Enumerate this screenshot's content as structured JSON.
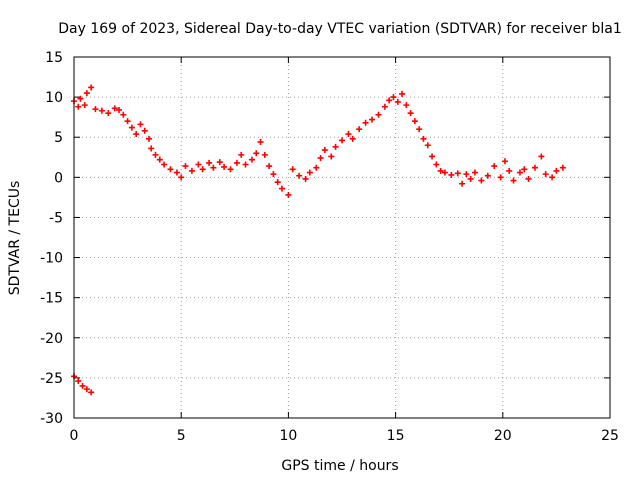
{
  "chart_data": {
    "type": "scatter",
    "title": "Day 169 of 2023, Sidereal Day-to-day VTEC variation (SDTVAR) for receiver bla1",
    "xlabel": "GPS time / hours",
    "ylabel": "SDTVAR / TECUs",
    "xlim": [
      0,
      25
    ],
    "ylim": [
      -30,
      15
    ],
    "grid": true,
    "x_ticks": [
      0,
      5,
      10,
      15,
      20,
      25
    ],
    "y_ticks": [
      15,
      10,
      5,
      0,
      -5,
      -10,
      -15,
      -20,
      -25,
      -30
    ],
    "marker_color": "#ff0000",
    "marker": "plus",
    "series": [
      {
        "name": "main-track",
        "points": [
          [
            0.0,
            9.5
          ],
          [
            0.3,
            9.8
          ],
          [
            0.6,
            10.5
          ],
          [
            0.8,
            11.2
          ],
          [
            0.2,
            8.8
          ],
          [
            0.5,
            9.0
          ],
          [
            1.0,
            8.5
          ],
          [
            1.3,
            8.3
          ],
          [
            1.6,
            8.0
          ],
          [
            1.9,
            8.6
          ],
          [
            2.1,
            8.4
          ],
          [
            2.3,
            7.8
          ],
          [
            2.5,
            7.0
          ],
          [
            2.7,
            6.2
          ],
          [
            2.9,
            5.4
          ],
          [
            3.1,
            6.6
          ],
          [
            3.3,
            5.8
          ],
          [
            3.5,
            4.8
          ],
          [
            3.6,
            3.6
          ],
          [
            3.8,
            2.8
          ],
          [
            4.0,
            2.2
          ],
          [
            4.2,
            1.6
          ],
          [
            4.5,
            1.0
          ],
          [
            4.8,
            0.6
          ],
          [
            5.0,
            0.0
          ],
          [
            5.2,
            1.4
          ],
          [
            5.5,
            0.8
          ],
          [
            5.8,
            1.6
          ],
          [
            6.0,
            1.0
          ],
          [
            6.3,
            1.8
          ],
          [
            6.5,
            1.2
          ],
          [
            6.8,
            1.9
          ],
          [
            7.0,
            1.3
          ],
          [
            7.3,
            1.0
          ],
          [
            7.6,
            1.8
          ],
          [
            7.8,
            2.8
          ],
          [
            8.0,
            1.6
          ],
          [
            8.3,
            2.2
          ],
          [
            8.5,
            3.0
          ],
          [
            8.7,
            4.4
          ],
          [
            8.9,
            2.8
          ],
          [
            9.1,
            1.4
          ],
          [
            9.3,
            0.4
          ],
          [
            9.5,
            -0.6
          ],
          [
            9.7,
            -1.4
          ],
          [
            10.0,
            -2.2
          ],
          [
            10.2,
            1.0
          ],
          [
            10.5,
            0.2
          ],
          [
            10.8,
            -0.2
          ],
          [
            11.0,
            0.6
          ],
          [
            11.3,
            1.2
          ],
          [
            11.5,
            2.4
          ],
          [
            11.7,
            3.4
          ],
          [
            12.0,
            2.6
          ],
          [
            12.2,
            3.8
          ],
          [
            12.5,
            4.6
          ],
          [
            12.8,
            5.4
          ],
          [
            13.0,
            4.8
          ],
          [
            13.3,
            6.0
          ],
          [
            13.6,
            6.8
          ],
          [
            13.9,
            7.2
          ],
          [
            14.2,
            7.8
          ],
          [
            14.5,
            8.8
          ],
          [
            14.7,
            9.6
          ],
          [
            14.9,
            10.0
          ],
          [
            15.1,
            9.4
          ],
          [
            15.3,
            10.4
          ],
          [
            15.5,
            9.0
          ],
          [
            15.7,
            8.0
          ],
          [
            15.9,
            7.0
          ],
          [
            16.1,
            6.0
          ],
          [
            16.3,
            4.8
          ],
          [
            16.5,
            4.0
          ],
          [
            16.7,
            2.6
          ],
          [
            16.9,
            1.6
          ],
          [
            17.1,
            0.8
          ],
          [
            17.3,
            0.6
          ],
          [
            17.6,
            0.3
          ],
          [
            17.9,
            0.5
          ],
          [
            18.1,
            -0.8
          ],
          [
            18.3,
            0.4
          ],
          [
            18.5,
            -0.2
          ],
          [
            18.7,
            0.6
          ],
          [
            19.0,
            -0.4
          ],
          [
            19.3,
            0.2
          ],
          [
            19.6,
            1.4
          ],
          [
            19.9,
            0.0
          ],
          [
            20.1,
            2.0
          ],
          [
            20.3,
            0.8
          ],
          [
            20.5,
            -0.4
          ],
          [
            20.8,
            0.6
          ],
          [
            21.0,
            1.0
          ],
          [
            21.2,
            -0.2
          ],
          [
            21.5,
            1.2
          ],
          [
            21.8,
            2.6
          ],
          [
            22.0,
            0.4
          ],
          [
            22.3,
            0.0
          ],
          [
            22.5,
            0.8
          ],
          [
            22.8,
            1.2
          ]
        ]
      },
      {
        "name": "outlier-cluster",
        "points": [
          [
            0.0,
            -24.8
          ],
          [
            0.2,
            -25.4
          ],
          [
            0.4,
            -26.0
          ],
          [
            0.6,
            -26.4
          ],
          [
            0.8,
            -26.8
          ]
        ]
      }
    ]
  }
}
